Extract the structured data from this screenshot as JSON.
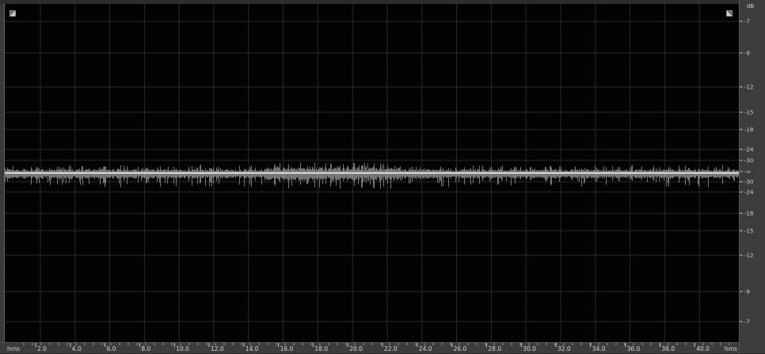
{
  "editor": {
    "time_ruler": {
      "unit_label_left": "hms",
      "unit_label_right": "hms",
      "ticks": [
        "2.0",
        "4.0",
        "6.0",
        "8.0",
        "10.0",
        "12.0",
        "14.0",
        "16.0",
        "18.0",
        "20.0",
        "22.0",
        "24.0",
        "26.0",
        "28.0",
        "30.0",
        "32.0",
        "34.0",
        "36.0",
        "38.0",
        "40.0"
      ]
    },
    "db_ruler": {
      "unit_label": "dB",
      "ticks": [
        "-7",
        "-9",
        "-12",
        "-15",
        "-18",
        "-24",
        "-30",
        "-∞",
        "-30",
        "-24",
        "-18",
        "-15",
        "-12",
        "-9",
        "-7"
      ]
    },
    "fade_in_handle": "fade-in-icon",
    "fade_out_handle": "fade-out-icon",
    "colors": {
      "background": "#030303",
      "waveform": "#d8d8d8",
      "grid": "#2a2a2a",
      "ruler": "#3c3c3c",
      "ruler_text": "#d4d4d4"
    }
  }
}
